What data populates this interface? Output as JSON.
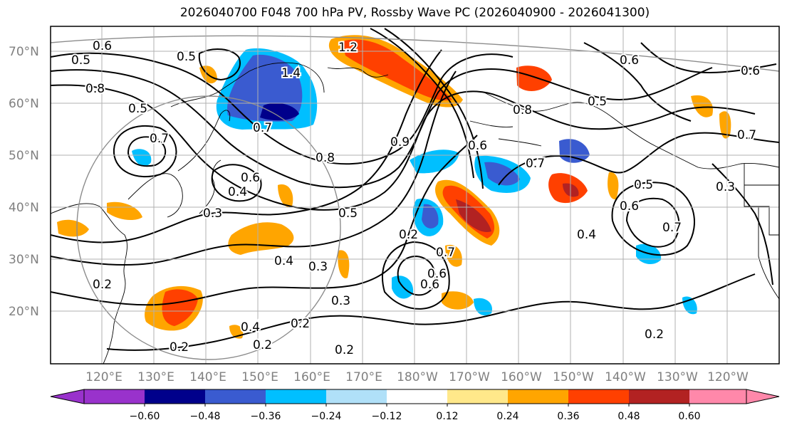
{
  "title": "2026040700 F048 700 hPa PV, Rossby Wave PC (2026040900 - 2026041300)",
  "lat_labels": [
    "70°N",
    "60°N",
    "50°N",
    "40°N",
    "30°N",
    "20°N"
  ],
  "lon_labels": [
    "120°E",
    "130°E",
    "140°E",
    "150°E",
    "160°E",
    "170°E",
    "180°W",
    "170°W",
    "160°W",
    "150°W",
    "140°W",
    "130°W",
    "120°W"
  ],
  "colorbar": {
    "ticks": [
      "−0.60",
      "−0.48",
      "−0.36",
      "−0.24",
      "−0.12",
      "0.12",
      "0.24",
      "0.36",
      "0.48",
      "0.60"
    ],
    "colors": [
      "#9932cc",
      "#00008b",
      "#3a5bd0",
      "#00bfff",
      "#b0e0f8",
      "#ffffff",
      "#ffe88a",
      "#ffa500",
      "#ff4000",
      "#b22222",
      "#ff88aa"
    ]
  },
  "contour_labels": [
    "0.5",
    "0.6",
    "0.5",
    "0.8",
    "0.7",
    "0.5",
    "0.7",
    "0.4",
    "0.6",
    "0.4",
    "0.3",
    "0.8",
    "0.9",
    "0.6",
    "0.2",
    "0.6",
    "0.7",
    "0.5",
    "0.6",
    "0.5",
    "0.7",
    "0.2",
    "0.4",
    "0.3",
    "0.3",
    "0.2",
    "0.2",
    "0.4",
    "0.2",
    "0.2",
    "0.6",
    "0.7",
    "0.3",
    "0.6",
    "0.2",
    "1.2",
    "1.4",
    "0.8",
    "0.7",
    "0.5",
    "0.6"
  ]
}
